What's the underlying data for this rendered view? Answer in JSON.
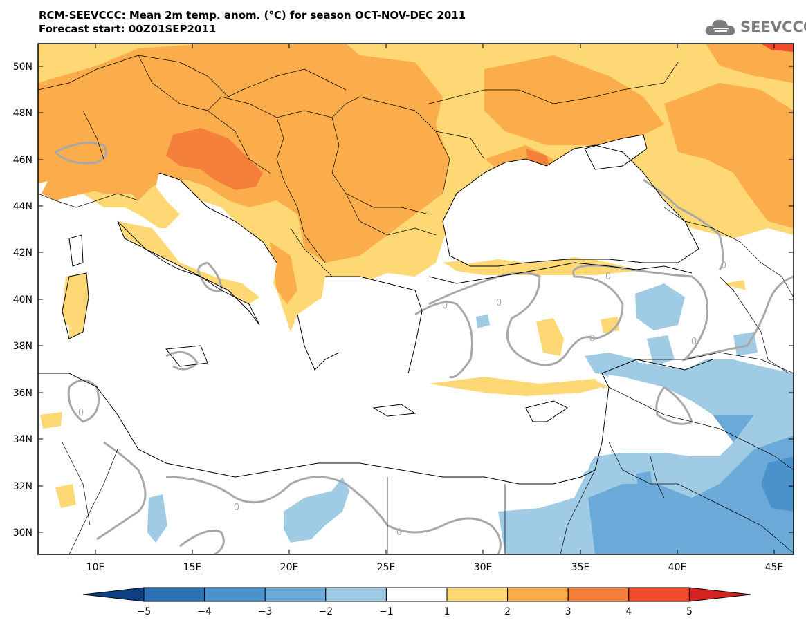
{
  "header": {
    "title_line1": "RCM-SEEVCCC: Mean 2m temp. anom. (°C) for season OCT-NOV-DEC 2011",
    "title_line2": "Forecast start: 00Z01SEP2011"
  },
  "logo": {
    "text": "SEEVCCC",
    "icon": "cloud-icon"
  },
  "map": {
    "lon_ticks": [
      "10E",
      "15E",
      "20E",
      "25E",
      "30E",
      "35E",
      "40E",
      "45E"
    ],
    "lat_ticks": [
      "50N",
      "48N",
      "46N",
      "44N",
      "42N",
      "40N",
      "38N",
      "36N",
      "34N",
      "32N",
      "30N"
    ],
    "contour_label": "0"
  },
  "colorbar": {
    "labels": [
      "−5",
      "−4",
      "−3",
      "−2",
      "−1",
      "1",
      "2",
      "3",
      "4",
      "5"
    ],
    "colors": [
      "#0d3f82",
      "#2b6fb5",
      "#4b92cc",
      "#6baad8",
      "#a0cbe4",
      "#ffffff",
      "#fdd875",
      "#fbad4b",
      "#f5803c",
      "#ef4a2b",
      "#d52221"
    ]
  },
  "colors": {
    "sea": "#ffffff",
    "anom_1_2": "#fdd875",
    "anom_2_3": "#fbad4b",
    "anom_3_4": "#f5803c",
    "anom_4_5": "#ef4a2b",
    "anom_m1_m2": "#a0cbe4",
    "anom_m2_m3": "#6baad8",
    "anom_m3_m4": "#4b92cc",
    "contour": "#a8a8a8"
  }
}
